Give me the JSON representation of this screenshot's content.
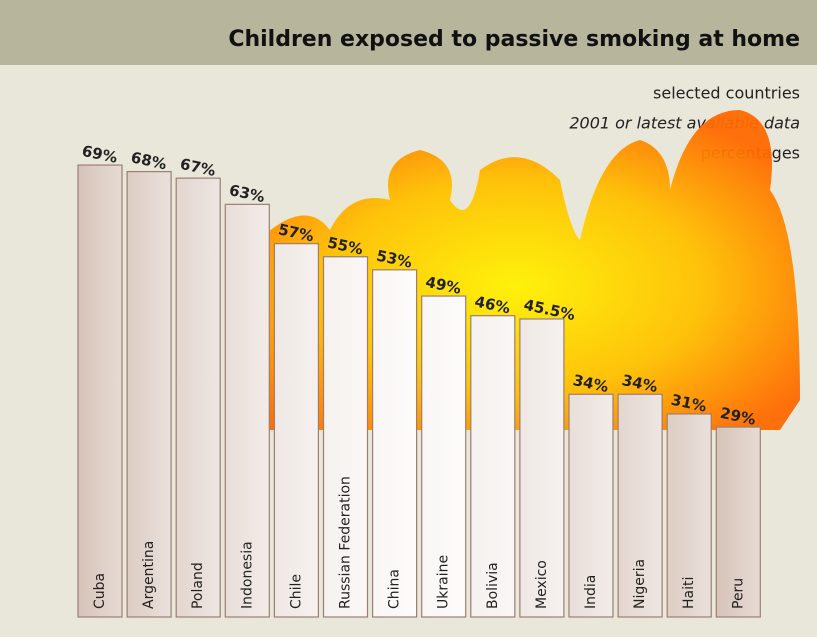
{
  "chart_data": {
    "type": "bar",
    "title": "Children exposed to passive smoking at home",
    "subtitle": [
      "selected countries",
      "2001 or latest available data",
      "percentages"
    ],
    "categories": [
      "Cuba",
      "Argentina",
      "Poland",
      "Indonesia",
      "Chile",
      "Russian Federation",
      "China",
      "Ukraine",
      "Bolivia",
      "Mexico",
      "India",
      "Nigeria",
      "Haiti",
      "Peru"
    ],
    "values": [
      69,
      68,
      67,
      63,
      57,
      55,
      53,
      49,
      46,
      45.5,
      34,
      34,
      31,
      29
    ],
    "value_labels": [
      "69%",
      "68%",
      "67%",
      "63%",
      "57%",
      "55%",
      "53%",
      "49%",
      "46%",
      "45.5%",
      "34%",
      "34%",
      "31%",
      "29%"
    ],
    "color": "#d6c3b9",
    "ylim": [
      0,
      100
    ]
  }
}
